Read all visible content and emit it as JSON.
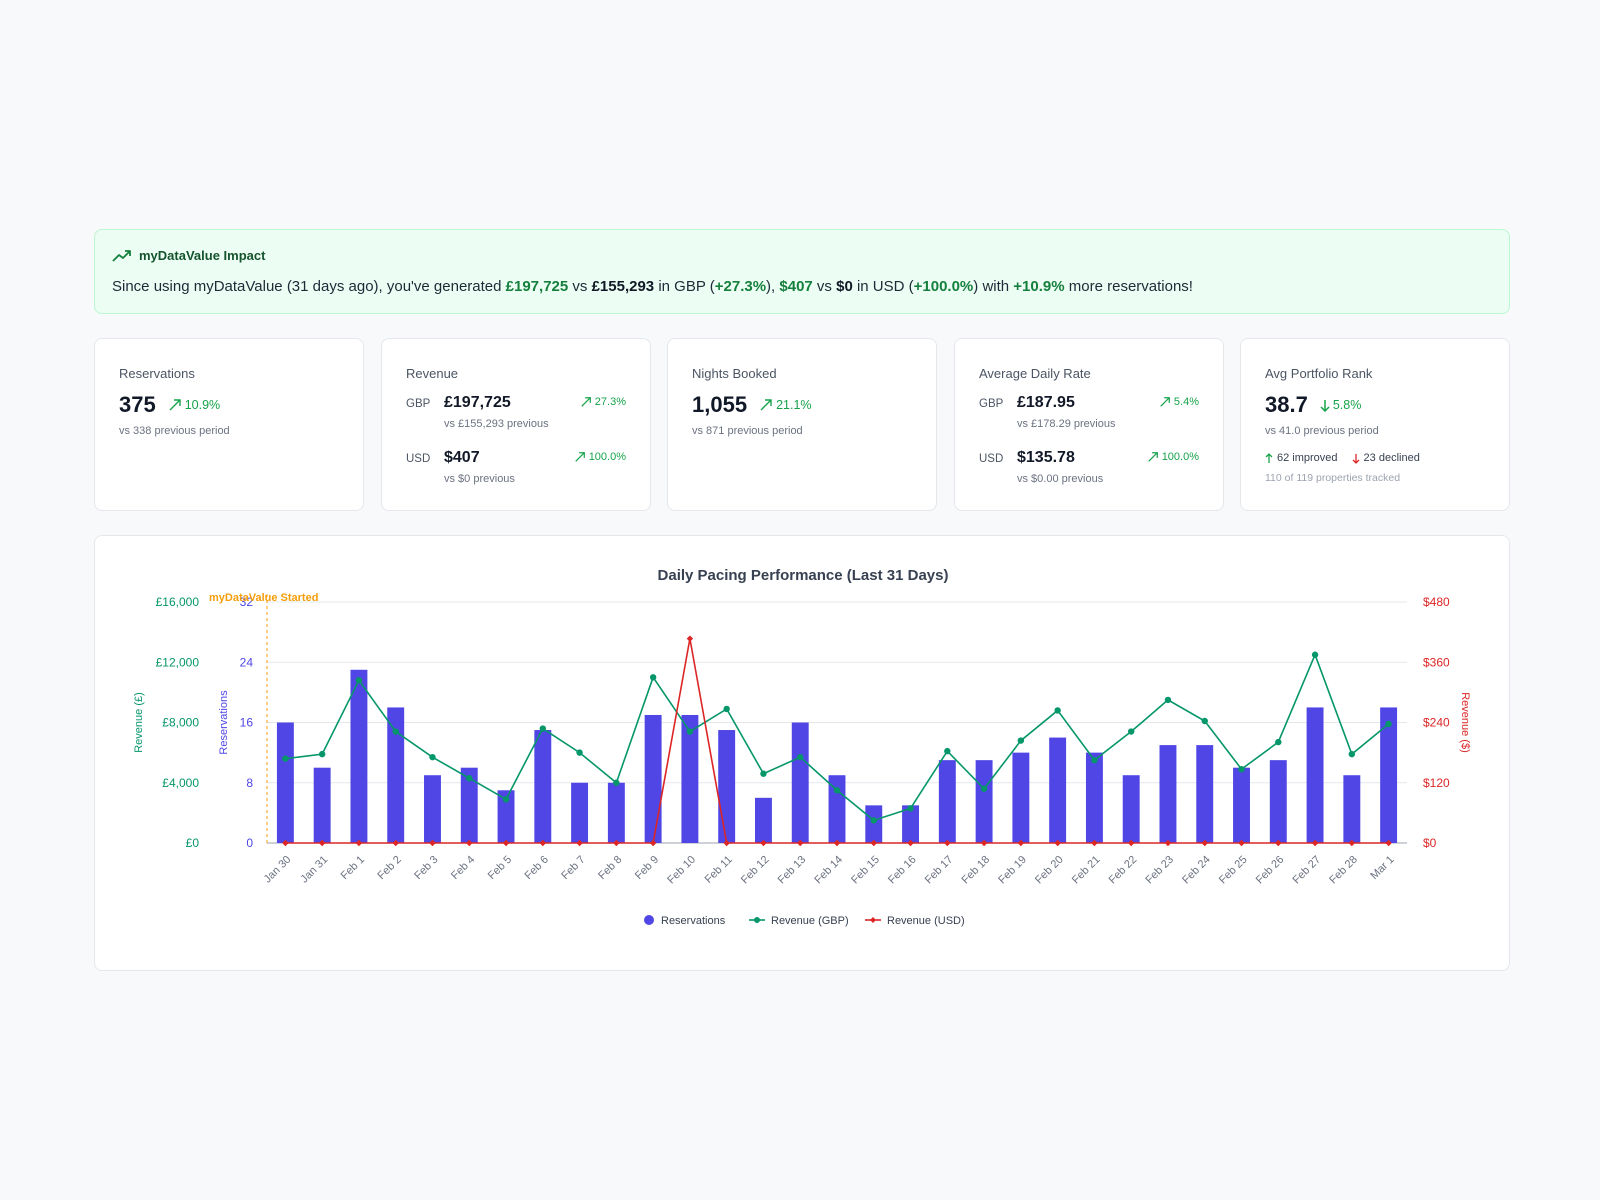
{
  "banner": {
    "title": "myDataValue Impact",
    "icon": "trending-up-icon",
    "msg_part1": "Since using myDataValue (31 days ago), you've generated ",
    "gbp_current": "£197,725",
    "msg_vs1": " vs ",
    "gbp_previous": "£155,293",
    "msg_in_gbp": " in GBP (",
    "gbp_change": "+27.3%",
    "msg_sep": "), ",
    "usd_current": "$407",
    "msg_vs2": " vs ",
    "usd_previous": "$0",
    "msg_in_usd": " in USD (",
    "usd_change": "+100.0%",
    "msg_with": ") with ",
    "res_change": "+10.9%",
    "msg_end": " more reservations!"
  },
  "cards": {
    "reservations": {
      "title": "Reservations",
      "value": "375",
      "change": "10.9%",
      "sub": "vs 338 previous period"
    },
    "revenue": {
      "title": "Revenue",
      "gbp": {
        "currency": "GBP",
        "value": "£197,725",
        "change": "27.3%",
        "sub": "vs £155,293 previous"
      },
      "usd": {
        "currency": "USD",
        "value": "$407",
        "change": "100.0%",
        "sub": "vs $0 previous"
      }
    },
    "nights": {
      "title": "Nights Booked",
      "value": "1,055",
      "change": "21.1%",
      "sub": "vs 871 previous period"
    },
    "adr": {
      "title": "Average Daily Rate",
      "gbp": {
        "currency": "GBP",
        "value": "£187.95",
        "change": "5.4%",
        "sub": "vs £178.29 previous"
      },
      "usd": {
        "currency": "USD",
        "value": "$135.78",
        "change": "100.0%",
        "sub": "vs $0.00 previous"
      }
    },
    "rank": {
      "title": "Avg Portfolio Rank",
      "value": "38.7",
      "change": "5.8%",
      "sub": "vs 41.0 previous period",
      "improved": "62 improved",
      "declined": "23 declined",
      "tracked": "110 of 119 properties tracked"
    }
  },
  "colors": {
    "green": "#16a34a",
    "bar": "#4f46e5",
    "gbp_line": "#059669",
    "usd_line": "#dc2626",
    "marker": "#f59e0b"
  },
  "chart_data": {
    "type": "bar",
    "title": "Daily Pacing Performance (Last 31 Days)",
    "annotation": "myDataValue Started",
    "categories": [
      "Jan 30",
      "Jan 31",
      "Feb 1",
      "Feb 2",
      "Feb 3",
      "Feb 4",
      "Feb 5",
      "Feb 6",
      "Feb 7",
      "Feb 8",
      "Feb 9",
      "Feb 10",
      "Feb 11",
      "Feb 12",
      "Feb 13",
      "Feb 14",
      "Feb 15",
      "Feb 16",
      "Feb 17",
      "Feb 18",
      "Feb 19",
      "Feb 20",
      "Feb 21",
      "Feb 22",
      "Feb 23",
      "Feb 24",
      "Feb 25",
      "Feb 26",
      "Feb 27",
      "Feb 28",
      "Mar 1"
    ],
    "y_axes": {
      "gbp": {
        "label": "Revenue (£)",
        "ticks": [
          "£0",
          "£4,000",
          "£8,000",
          "£12,000",
          "£16,000"
        ],
        "range": [
          0,
          16000
        ]
      },
      "reservations": {
        "label": "Reservations",
        "ticks": [
          "0",
          "8",
          "16",
          "24",
          "32"
        ],
        "range": [
          0,
          32
        ]
      },
      "usd": {
        "label": "Revenue ($)",
        "ticks": [
          "$0",
          "$120",
          "$240",
          "$360",
          "$480"
        ],
        "range": [
          0,
          480
        ]
      }
    },
    "series": [
      {
        "name": "Reservations",
        "type": "bar",
        "axis": "reservations",
        "values": [
          16,
          10,
          23,
          18,
          9,
          10,
          7,
          15,
          8,
          8,
          17,
          17,
          15,
          6,
          16,
          9,
          5,
          5,
          11,
          11,
          12,
          14,
          12,
          9,
          13,
          13,
          10,
          11,
          18,
          9,
          18
        ]
      },
      {
        "name": "Revenue (GBP)",
        "type": "line",
        "axis": "gbp",
        "values": [
          5600,
          5900,
          10800,
          7400,
          5700,
          4300,
          2900,
          7600,
          6000,
          4000,
          11000,
          7400,
          8900,
          4600,
          5700,
          3500,
          1500,
          2300,
          6100,
          3600,
          6800,
          8800,
          5500,
          7400,
          9500,
          8100,
          4900,
          6700,
          12500,
          5900,
          7900
        ]
      },
      {
        "name": "Revenue (USD)",
        "type": "line",
        "axis": "usd",
        "values": [
          0,
          0,
          0,
          0,
          0,
          0,
          0,
          0,
          0,
          0,
          0,
          407,
          0,
          0,
          0,
          0,
          0,
          0,
          0,
          0,
          0,
          0,
          0,
          0,
          0,
          0,
          0,
          0,
          0,
          0,
          0
        ]
      }
    ],
    "legend": [
      "Reservations",
      "Revenue (GBP)",
      "Revenue (USD)"
    ],
    "legend_position": "bottom",
    "grid": true
  }
}
